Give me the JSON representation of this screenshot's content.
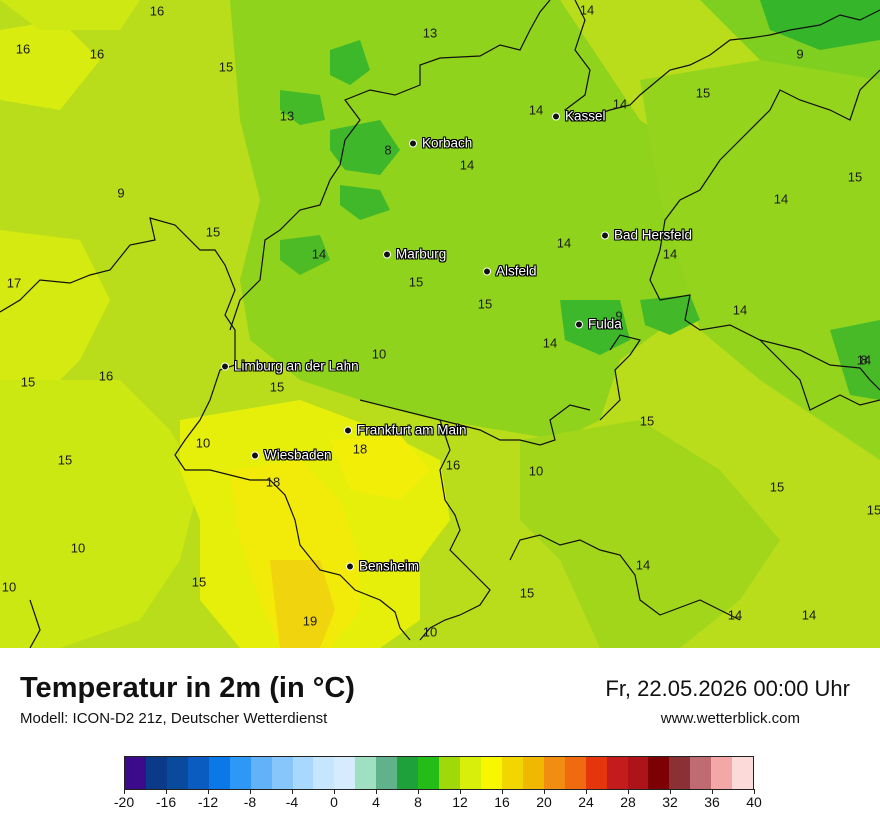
{
  "title": "Temperatur in 2m (in °C)",
  "model": "Modell: ICON-D2 21z, Deutscher Wetterdienst",
  "datetime": "Fr, 22.05.2026 00:00 Uhr",
  "website": "www.wetterblick.com",
  "cities": [
    {
      "name": "Kassel"
    },
    {
      "name": "Korbach"
    },
    {
      "name": "Bad Hersfeld"
    },
    {
      "name": "Marburg"
    },
    {
      "name": "Alsfeld"
    },
    {
      "name": "Fulda"
    },
    {
      "name": "Limburg an der Lahn"
    },
    {
      "name": "Frankfurt am Main"
    },
    {
      "name": "Wiesbaden"
    },
    {
      "name": "Bensheim"
    }
  ],
  "values": [
    "16",
    "16",
    "16",
    "13",
    "14",
    "15",
    "14",
    "9",
    "15",
    "13",
    "8",
    "14",
    "14",
    "15",
    "9",
    "15",
    "14",
    "14",
    "14",
    "17",
    "14",
    "14",
    "15",
    "15",
    "14",
    "9",
    "14",
    "10",
    "15",
    "15",
    "16",
    "8",
    "15",
    "10",
    "18",
    "16",
    "10",
    "15",
    "18",
    "15",
    "15",
    "14",
    "10",
    "15",
    "15",
    "10",
    "19",
    "14",
    "14",
    "10"
  ],
  "legend": {
    "colors": [
      "#3b0b8c",
      "#0b3a8a",
      "#0a4a9c",
      "#0a5cc0",
      "#0b78e8",
      "#2e98f7",
      "#62b2f9",
      "#86c6fb",
      "#a8d8fd",
      "#c6e6fe",
      "#d6ecfe",
      "#9fe0c2",
      "#5fb28a",
      "#1ea13a",
      "#24bd18",
      "#a0d90a",
      "#d8ef0c",
      "#f7f700",
      "#f1d600",
      "#f1b800",
      "#f18d10",
      "#f06b10",
      "#e5350c",
      "#c41c1c",
      "#ad1318",
      "#7d0005",
      "#8b3035",
      "#c06a72",
      "#f4a7a7",
      "#fddada"
    ],
    "ticks": [
      "-20",
      "-16",
      "-12",
      "-8",
      "-4",
      "0",
      "4",
      "8",
      "12",
      "16",
      "20",
      "24",
      "28",
      "32",
      "36",
      "40"
    ]
  },
  "colors": {
    "base": "#b6dc1c",
    "green": "#8fd21a",
    "dark_green": "#2fb32a",
    "yellow": "#eef20a",
    "orange": "#f2cf12"
  }
}
